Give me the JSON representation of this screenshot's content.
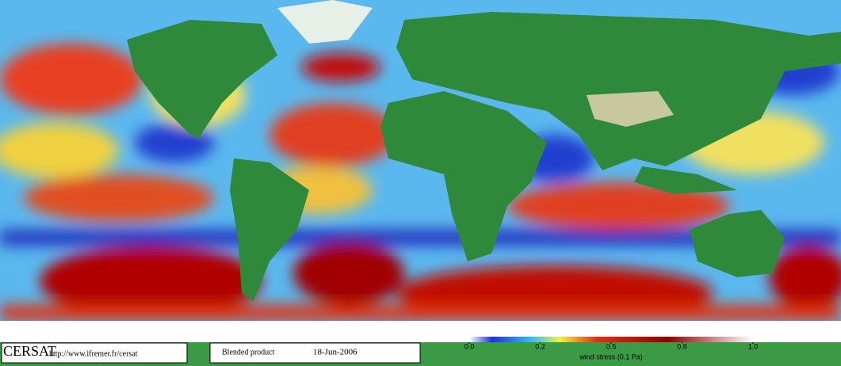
{
  "credits": {
    "org": "CERSAT",
    "url": "http://www.ifremer.fr/cersat"
  },
  "product": {
    "name": "Blended product",
    "date": "18-Jun-2006"
  },
  "colorbar": {
    "label": "wind stress (0.1 Pa)",
    "range": [
      0,
      1
    ],
    "ticks": [
      {
        "value": 0,
        "label": "0.0"
      },
      0.2,
      0.5,
      0.8,
      {
        "value": 1,
        "label": "1.0"
      }
    ]
  }
}
